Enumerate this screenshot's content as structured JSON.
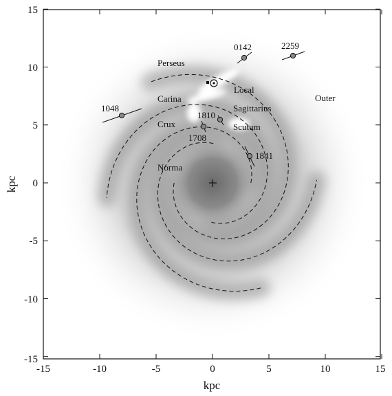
{
  "axes": {
    "xlabel": "kpc",
    "ylabel": "kpc",
    "x_ticks": [
      "-15",
      "-10",
      "-5",
      "0",
      "5",
      "10",
      "15"
    ],
    "y_ticks": [
      "15",
      "10",
      "5",
      "0",
      "-5",
      "-10",
      "-15"
    ],
    "xlim": [
      -15,
      15
    ],
    "ylim": [
      -15,
      15
    ]
  },
  "arms": [
    {
      "label": "Perseus"
    },
    {
      "label": "Carina"
    },
    {
      "label": "Crux"
    },
    {
      "label": "Norma"
    },
    {
      "label": "Local"
    },
    {
      "label": "Sagittarius"
    },
    {
      "label": "Scutum"
    },
    {
      "label": "Outer"
    }
  ],
  "sources": [
    {
      "label": "0142",
      "x": 2.8,
      "y": 10.8
    },
    {
      "label": "2259",
      "x": 7.1,
      "y": 11.0
    },
    {
      "label": "1048",
      "x": -8.0,
      "y": 5.9
    },
    {
      "label": "1810",
      "x": 0.7,
      "y": 5.5
    },
    {
      "label": "1708",
      "x": -0.8,
      "y": 4.9
    },
    {
      "label": "1841",
      "x": 3.3,
      "y": 2.4
    }
  ],
  "markers": {
    "galactic_center": {
      "x": 0,
      "y": 0
    },
    "sun": {
      "x": 0.0,
      "y": 8.7
    }
  }
}
